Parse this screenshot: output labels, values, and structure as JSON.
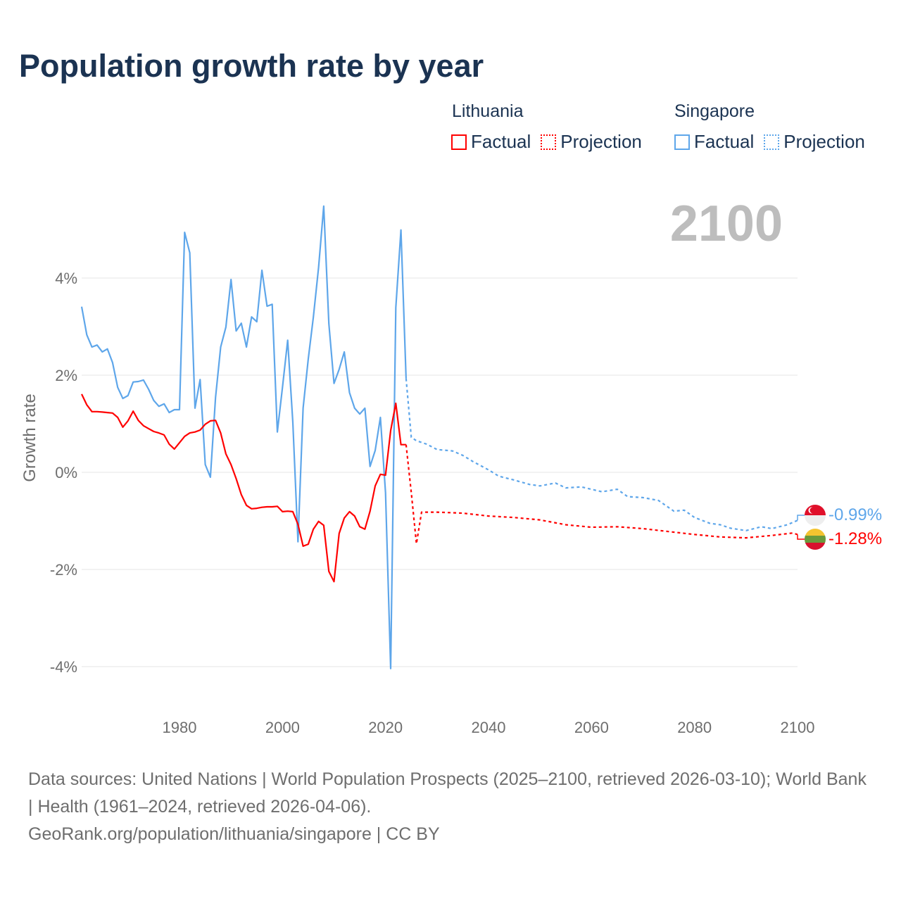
{
  "title": "Population growth rate by year",
  "legend": {
    "groups": [
      {
        "name": "Lithuania",
        "color": "#ff0000",
        "items": [
          "Factual",
          "Projection"
        ]
      },
      {
        "name": "Singapore",
        "color": "#5ea6ea",
        "items": [
          "Factual",
          "Projection"
        ]
      }
    ]
  },
  "year_label": "2100",
  "end_labels": {
    "singapore": "-0.99%",
    "lithuania": "-1.28%"
  },
  "footer": {
    "sources": "Data sources: United Nations | World Population Prospects (2025–2100, retrieved 2026-03-10); World Bank | Health (1961–2024, retrieved 2026-04-06).",
    "credit": "GeoRank.org/population/lithuania/singapore | CC BY"
  },
  "chart_data": {
    "type": "line",
    "title": "Population growth rate by year",
    "xlabel": "",
    "ylabel": "Growth rate",
    "xlim": [
      1961,
      2100
    ],
    "ylim": [
      -4.8,
      5.6
    ],
    "x_ticks": [
      1980,
      2000,
      2020,
      2040,
      2060,
      2080,
      2100
    ],
    "x_tick_labels": [
      "1980",
      "2000",
      "2020",
      "2040",
      "2060",
      "2080",
      "2100"
    ],
    "y_ticks": [
      4,
      2,
      0,
      -2,
      -4
    ],
    "y_tick_labels": [
      "4%",
      "2%",
      "0%",
      "-2%",
      "-4%"
    ],
    "grid": true,
    "legend_position": "top-right",
    "series": [
      {
        "name": "Singapore Factual",
        "color": "#5ea6ea",
        "style": "solid",
        "x": [
          1961,
          1962,
          1963,
          1964,
          1965,
          1966,
          1967,
          1968,
          1969,
          1970,
          1971,
          1972,
          1973,
          1974,
          1975,
          1976,
          1977,
          1978,
          1979,
          1980,
          1981,
          1982,
          1983,
          1984,
          1985,
          1986,
          1987,
          1988,
          1989,
          1990,
          1991,
          1992,
          1993,
          1994,
          1995,
          1996,
          1997,
          1998,
          1999,
          2000,
          2001,
          2002,
          2003,
          2004,
          2005,
          2006,
          2007,
          2008,
          2009,
          2010,
          2011,
          2012,
          2013,
          2014,
          2015,
          2016,
          2017,
          2018,
          2019,
          2020,
          2021,
          2022,
          2023,
          2024
        ],
        "y": [
          3.41,
          2.83,
          2.58,
          2.62,
          2.48,
          2.54,
          2.26,
          1.75,
          1.52,
          1.58,
          1.86,
          1.87,
          1.9,
          1.71,
          1.48,
          1.36,
          1.41,
          1.23,
          1.29,
          1.29,
          4.94,
          4.52,
          1.32,
          1.91,
          0.16,
          -0.1,
          1.54,
          2.58,
          2.99,
          3.97,
          2.91,
          3.07,
          2.58,
          3.2,
          3.1,
          4.16,
          3.42,
          3.46,
          0.83,
          1.75,
          2.72,
          1.03,
          -1.43,
          1.32,
          2.33,
          3.2,
          4.22,
          5.48,
          3.06,
          1.83,
          2.12,
          2.48,
          1.64,
          1.32,
          1.2,
          1.32,
          0.12,
          0.45,
          1.13,
          -0.42,
          -4.04,
          3.39,
          4.99,
          1.93
        ]
      },
      {
        "name": "Singapore Projection",
        "color": "#5ea6ea",
        "style": "dotted",
        "x": [
          2024,
          2025,
          2026,
          2028,
          2030,
          2033,
          2035,
          2037,
          2040,
          2042,
          2045,
          2048,
          2050,
          2053,
          2055,
          2058,
          2060,
          2062,
          2065,
          2067,
          2070,
          2073,
          2076,
          2078,
          2080,
          2083,
          2085,
          2087,
          2090,
          2093,
          2095,
          2098,
          2100
        ],
        "y": [
          1.93,
          0.72,
          0.65,
          0.58,
          0.47,
          0.44,
          0.35,
          0.22,
          0.05,
          -0.08,
          -0.16,
          -0.25,
          -0.28,
          -0.22,
          -0.32,
          -0.3,
          -0.35,
          -0.4,
          -0.35,
          -0.5,
          -0.52,
          -0.58,
          -0.8,
          -0.78,
          -0.93,
          -1.05,
          -1.08,
          -1.15,
          -1.2,
          -1.12,
          -1.16,
          -1.08,
          -0.99
        ]
      },
      {
        "name": "Lithuania Factual",
        "color": "#ff0000",
        "style": "solid",
        "x": [
          1961,
          1962,
          1963,
          1964,
          1965,
          1966,
          1967,
          1968,
          1969,
          1970,
          1971,
          1972,
          1973,
          1974,
          1975,
          1976,
          1977,
          1978,
          1979,
          1980,
          1981,
          1982,
          1983,
          1984,
          1985,
          1986,
          1987,
          1988,
          1989,
          1990,
          1991,
          1992,
          1993,
          1994,
          1995,
          1996,
          1997,
          1998,
          1999,
          2000,
          2001,
          2002,
          2003,
          2004,
          2005,
          2006,
          2007,
          2008,
          2009,
          2010,
          2011,
          2012,
          2013,
          2014,
          2015,
          2016,
          2017,
          2018,
          2019,
          2020,
          2021,
          2022,
          2023,
          2024
        ],
        "y": [
          1.61,
          1.39,
          1.25,
          1.25,
          1.24,
          1.23,
          1.22,
          1.13,
          0.93,
          1.06,
          1.26,
          1.07,
          0.96,
          0.9,
          0.84,
          0.81,
          0.77,
          0.58,
          0.48,
          0.61,
          0.74,
          0.81,
          0.83,
          0.87,
          0.99,
          1.06,
          1.07,
          0.81,
          0.38,
          0.16,
          -0.13,
          -0.46,
          -0.68,
          -0.75,
          -0.74,
          -0.72,
          -0.71,
          -0.71,
          -0.7,
          -0.81,
          -0.8,
          -0.81,
          -1.07,
          -1.52,
          -1.48,
          -1.17,
          -1.01,
          -1.09,
          -2.04,
          -2.25,
          -1.26,
          -0.94,
          -0.81,
          -0.9,
          -1.12,
          -1.17,
          -0.8,
          -0.28,
          -0.04,
          -0.06,
          0.86,
          1.42,
          0.57,
          0.57
        ]
      },
      {
        "name": "Lithuania Projection",
        "color": "#ff0000",
        "style": "dotted",
        "x": [
          2024,
          2025,
          2026,
          2027,
          2030,
          2035,
          2040,
          2045,
          2050,
          2055,
          2060,
          2065,
          2070,
          2075,
          2080,
          2085,
          2090,
          2095,
          2099,
          2100
        ],
        "y": [
          0.57,
          -0.42,
          -1.47,
          -0.82,
          -0.82,
          -0.84,
          -0.9,
          -0.93,
          -0.98,
          -1.08,
          -1.13,
          -1.12,
          -1.16,
          -1.22,
          -1.28,
          -1.33,
          -1.35,
          -1.3,
          -1.25,
          -1.28
        ]
      }
    ]
  }
}
